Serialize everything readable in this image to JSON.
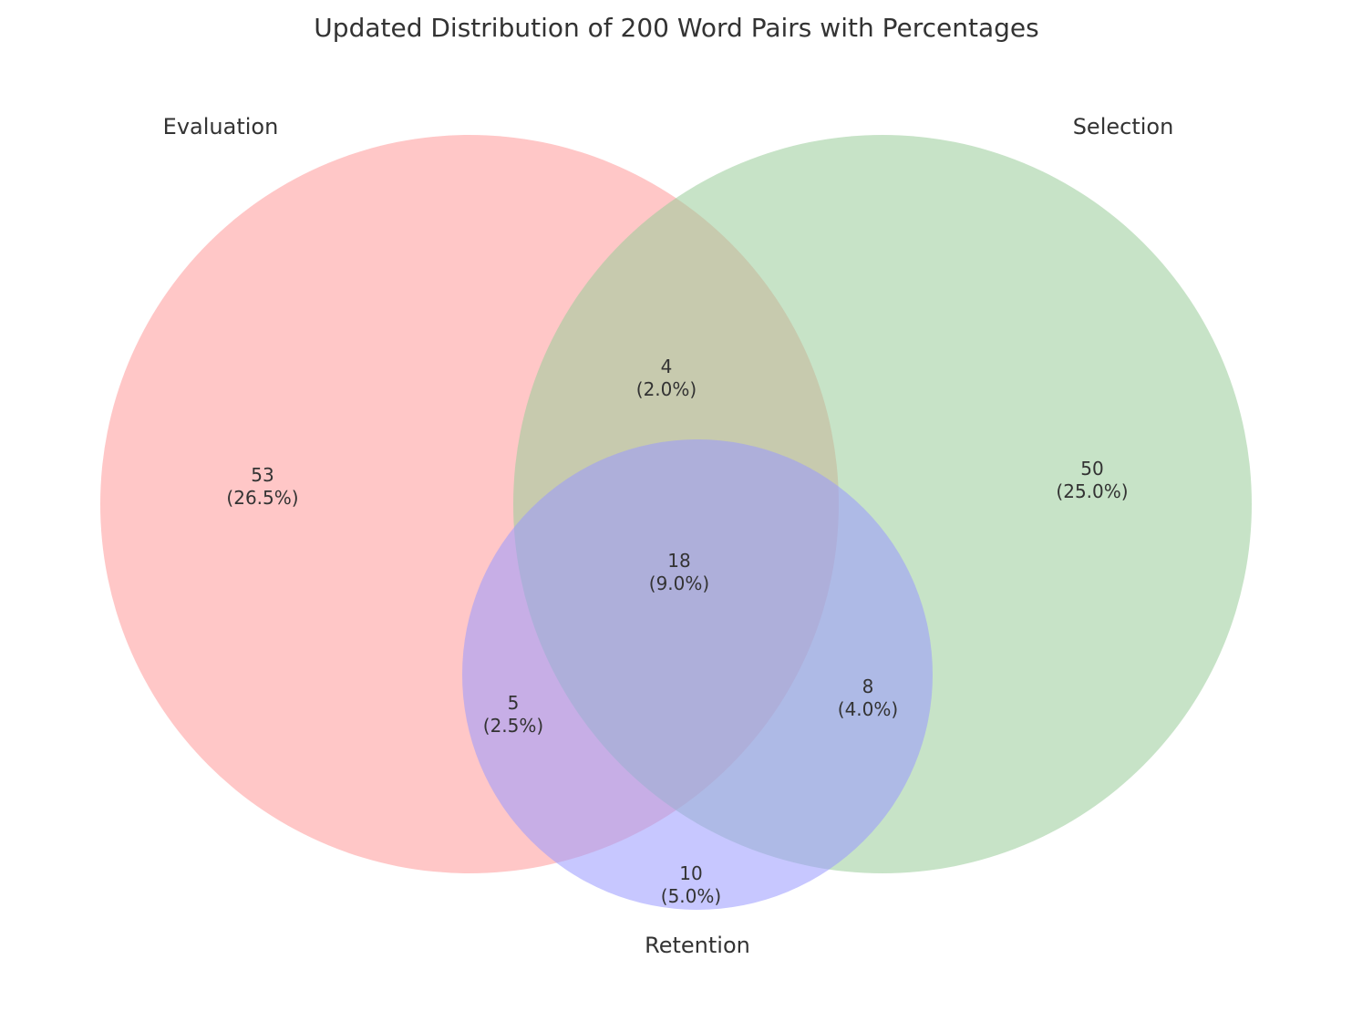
{
  "chart_data": {
    "type": "venn",
    "title": "Updated Distribution of 200 Word Pairs with Percentages",
    "total": 200,
    "sets": [
      {
        "key": "evaluation",
        "name": "Evaluation",
        "color": "#ff9999"
      },
      {
        "key": "selection",
        "name": "Selection",
        "color": "#99cc99"
      },
      {
        "key": "retention",
        "name": "Retention",
        "color": "#9999ff"
      }
    ],
    "regions": [
      {
        "sets": [
          "Evaluation"
        ],
        "value": 53,
        "percent": "(26.5%)"
      },
      {
        "sets": [
          "Selection"
        ],
        "value": 50,
        "percent": "(25.0%)"
      },
      {
        "sets": [
          "Retention"
        ],
        "value": 10,
        "percent": "(5.0%)"
      },
      {
        "sets": [
          "Evaluation",
          "Selection"
        ],
        "value": 4,
        "percent": "(2.0%)"
      },
      {
        "sets": [
          "Evaluation",
          "Retention"
        ],
        "value": 5,
        "percent": "(2.5%)"
      },
      {
        "sets": [
          "Selection",
          "Retention"
        ],
        "value": 8,
        "percent": "(4.0%)"
      },
      {
        "sets": [
          "Evaluation",
          "Selection",
          "Retention"
        ],
        "value": 18,
        "percent": "(9.0%)"
      }
    ]
  }
}
